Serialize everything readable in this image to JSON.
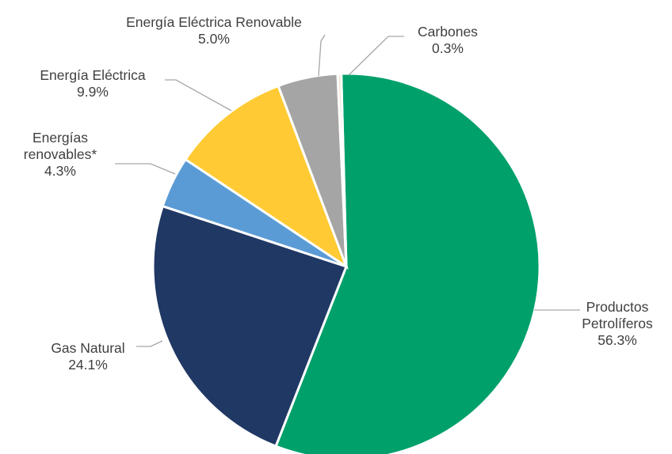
{
  "chart_data": {
    "type": "pie",
    "title": "",
    "legend": "none",
    "slices": [
      {
        "label_lines": [
          "Productos",
          "Petrolíferos"
        ],
        "value": 56.3,
        "value_label": "56.3%",
        "color": "#00A06B"
      },
      {
        "label_lines": [
          "Gas Natural"
        ],
        "value": 24.1,
        "value_label": "24.1%",
        "color": "#203864"
      },
      {
        "label_lines": [
          "Energías",
          "renovables*"
        ],
        "value": 4.3,
        "value_label": "4.3%",
        "color": "#5B9BD5"
      },
      {
        "label_lines": [
          "Energía Eléctrica"
        ],
        "value": 9.9,
        "value_label": "9.9%",
        "color": "#FFCA33"
      },
      {
        "label_lines": [
          "Energía Eléctrica Renovable"
        ],
        "value": 5.0,
        "value_label": "5.0%",
        "color": "#A5A5A5"
      },
      {
        "label_lines": [
          "Carbones"
        ],
        "value": 0.3,
        "value_label": "0.3%",
        "color": "#EDE3C8"
      }
    ]
  }
}
